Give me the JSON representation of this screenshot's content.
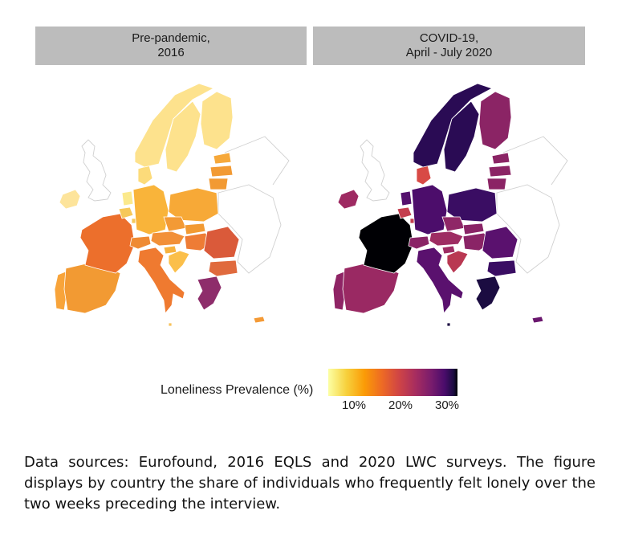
{
  "panels": [
    {
      "title_line1": "Pre-pandemic,",
      "title_line2": "2016"
    },
    {
      "title_line1": "COVID-19,",
      "title_line2": "April - July 2020"
    }
  ],
  "legend": {
    "title": "Loneliness Prevalence (%)",
    "ticks": [
      "10%",
      "20%",
      "30%"
    ],
    "colors": [
      "#fcffa4",
      "#f7d13d",
      "#fb9b06",
      "#ed6925",
      "#cf4446",
      "#a52c60",
      "#781c6d",
      "#4a0c6b",
      "#1b0c41",
      "#000004"
    ]
  },
  "caption": "Data sources: Eurofound, 2016 EQLS and 2020 LWC surveys. The figure displays by country the share of individuals who frequently felt lonely over the two weeks preceding the interview.",
  "map_colors": {
    "2016": {
      "ireland": "#fde49b",
      "uk_outline": "none",
      "portugal": "#f8a43a",
      "spain": "#f29a33",
      "france": "#ec6f2c",
      "belgium": "#f6c85a",
      "netherlands": "#fbe98c",
      "germany": "#f9b43a",
      "denmark": "#fcdb7a",
      "norway": "#fde28d",
      "sweden": "#fde28d",
      "finland": "#fde28d",
      "estonia": "#f6a83a",
      "latvia": "#f29a33",
      "lithuania": "#f29a33",
      "poland": "#f7a937",
      "czechia": "#f39a35",
      "austria": "#f29038",
      "switzerland": "#ef8a33",
      "italy": "#ef7a30",
      "slovenia": "#f7b23e",
      "croatia": "#fbbf4a",
      "hungary": "#ee7c35",
      "slovakia": "#f29a33",
      "romania": "#da5a3a",
      "bulgaria": "#e06a3d",
      "greece": "#8e2d6b",
      "cyprus": "#f49a36",
      "malta": "#f7c25a",
      "luxembourg": "#f6c85a"
    },
    "2020": {
      "ireland": "#9e2a62",
      "uk_outline": "none",
      "portugal": "#8f2465",
      "spain": "#9a2963",
      "france": "#000004",
      "belgium": "#c43f4f",
      "netherlands": "#54106d",
      "germany": "#4c0d6b",
      "denmark": "#d84a45",
      "norway": "#2a0b54",
      "sweden": "#2a0b54",
      "finland": "#8b2465",
      "estonia": "#8b2465",
      "latvia": "#8b2465",
      "lithuania": "#8b2465",
      "poland": "#3a0d63",
      "czechia": "#8f2767",
      "austria": "#9e2d63",
      "switzerland": "#8a2466",
      "italy": "#5a116e",
      "slovenia": "#9e2d63",
      "croatia": "#b93852",
      "hungary": "#8a2466",
      "slovakia": "#8a2466",
      "romania": "#5a116e",
      "bulgaria": "#3a0d63",
      "greece": "#1b0c41",
      "cyprus": "#6a176e",
      "malta": "#1b0c41",
      "luxembourg": "#c43f4f"
    }
  }
}
